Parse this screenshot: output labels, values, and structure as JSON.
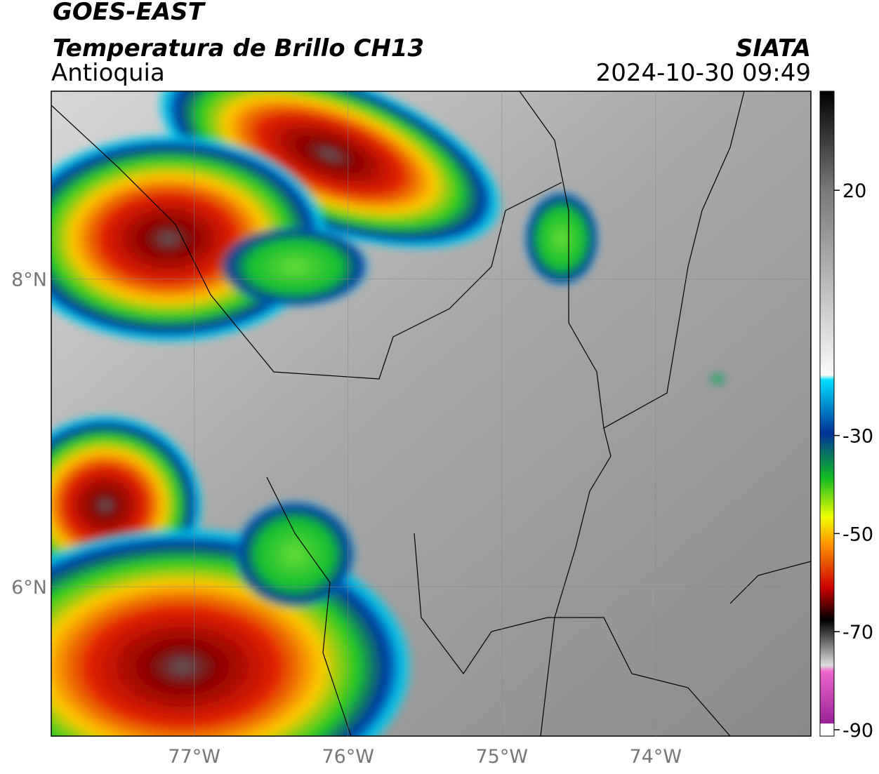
{
  "header": {
    "title": "GOES-EAST",
    "subtitle": "Temperatura de Brillo CH13",
    "region": "Antioquia",
    "source": "SIATA",
    "datetime": "2024-10-30 09:49"
  },
  "map": {
    "xlim": [
      -77.93,
      -72.99
    ],
    "ylim": [
      5.03,
      9.22
    ],
    "xticks": [
      {
        "value": -77,
        "label": "77°W"
      },
      {
        "value": -76,
        "label": "76°W"
      },
      {
        "value": -75,
        "label": "75°W"
      },
      {
        "value": -74,
        "label": "74°W"
      }
    ],
    "yticks": [
      {
        "value": 8,
        "label": "8°N"
      },
      {
        "value": 6,
        "label": "6°N"
      }
    ]
  },
  "colorbar": {
    "lim": [
      -91.3,
      40.2
    ],
    "ticks": [
      20,
      -30,
      -50,
      -70,
      -90
    ]
  }
}
